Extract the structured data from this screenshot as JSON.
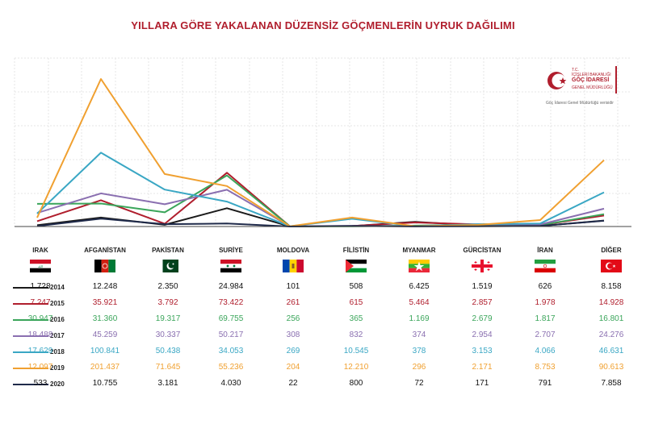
{
  "title": "YILLARA GÖRE YAKALANAN DÜZENSİZ GÖÇMENLERİN UYRUK DAĞILIMI",
  "logo": {
    "line1": "T.C.",
    "line2": "İÇİŞLERİ BAKANLIĞI",
    "line3": "GÖÇ İDARESİ",
    "line4": "GENEL MÜDÜRLÜĞÜ",
    "note": "Göç İdaresi Genel Müdürlüğü verisidir"
  },
  "chart_data": {
    "type": "line",
    "title": "YILLARA GÖRE YAKALANAN DÜZENSİZ GÖÇMENLERİN UYRUK DAĞILIMI",
    "categories": [
      "IRAK",
      "AFGANİSTAN",
      "PAKİSTAN",
      "SURİYE",
      "MOLDOVA",
      "FİLİSTİN",
      "MYANMAR",
      "GÜRCİSTAN",
      "İRAN",
      "DİĞER"
    ],
    "series": [
      {
        "name": "2014",
        "color": "#1a1a1a",
        "display": [
          "1.728",
          "12.248",
          "2.350",
          "24.984",
          "101",
          "508",
          "6.425",
          "1.519",
          "626",
          "8.158"
        ],
        "values": [
          1728,
          12248,
          2350,
          24984,
          101,
          508,
          6425,
          1519,
          626,
          8158
        ]
      },
      {
        "name": "2015",
        "color": "#b01e2d",
        "display": [
          "7.247",
          "35.921",
          "3.792",
          "73.422",
          "261",
          "615",
          "5.464",
          "2.857",
          "1.978",
          "14.928"
        ],
        "values": [
          7247,
          35921,
          3792,
          73422,
          261,
          615,
          5464,
          2857,
          1978,
          14928
        ]
      },
      {
        "name": "2016",
        "color": "#3aa55a",
        "display": [
          "30.947",
          "31.360",
          "19.317",
          "69.755",
          "256",
          "365",
          "1.169",
          "2.679",
          "1.817",
          "16.801"
        ],
        "values": [
          30947,
          31360,
          19317,
          69755,
          256,
          365,
          1169,
          2679,
          1817,
          16801
        ]
      },
      {
        "name": "2017",
        "color": "#8a6fb0",
        "display": [
          "18.488",
          "45.259",
          "30.337",
          "50.217",
          "308",
          "832",
          "374",
          "2.954",
          "2.707",
          "24.276"
        ],
        "values": [
          18488,
          45259,
          30337,
          50217,
          308,
          832,
          374,
          2954,
          2707,
          24276
        ]
      },
      {
        "name": "2018",
        "color": "#3aa7c4",
        "display": [
          "17.629",
          "100.841",
          "50.438",
          "34.053",
          "269",
          "10.545",
          "378",
          "3.153",
          "4.066",
          "46.631"
        ],
        "values": [
          17629,
          100841,
          50438,
          34053,
          269,
          10545,
          378,
          3153,
          4066,
          46631
        ]
      },
      {
        "name": "2019",
        "color": "#f0a030",
        "display": [
          "12.097",
          "201.437",
          "71.645",
          "55.236",
          "204",
          "12.210",
          "296",
          "2.171",
          "8.753",
          "90.613"
        ],
        "values": [
          12097,
          201437,
          71645,
          55236,
          204,
          12210,
          296,
          2171,
          8753,
          90613
        ]
      },
      {
        "name": "2020",
        "color": "#1f2a4a",
        "display": [
          "533",
          "10.755",
          "3.181",
          "4.030",
          "22",
          "800",
          "72",
          "171",
          "791",
          "7.858"
        ],
        "values": [
          533,
          10755,
          3181,
          4030,
          22,
          800,
          72,
          171,
          791,
          7858
        ]
      }
    ],
    "grid": true
  }
}
